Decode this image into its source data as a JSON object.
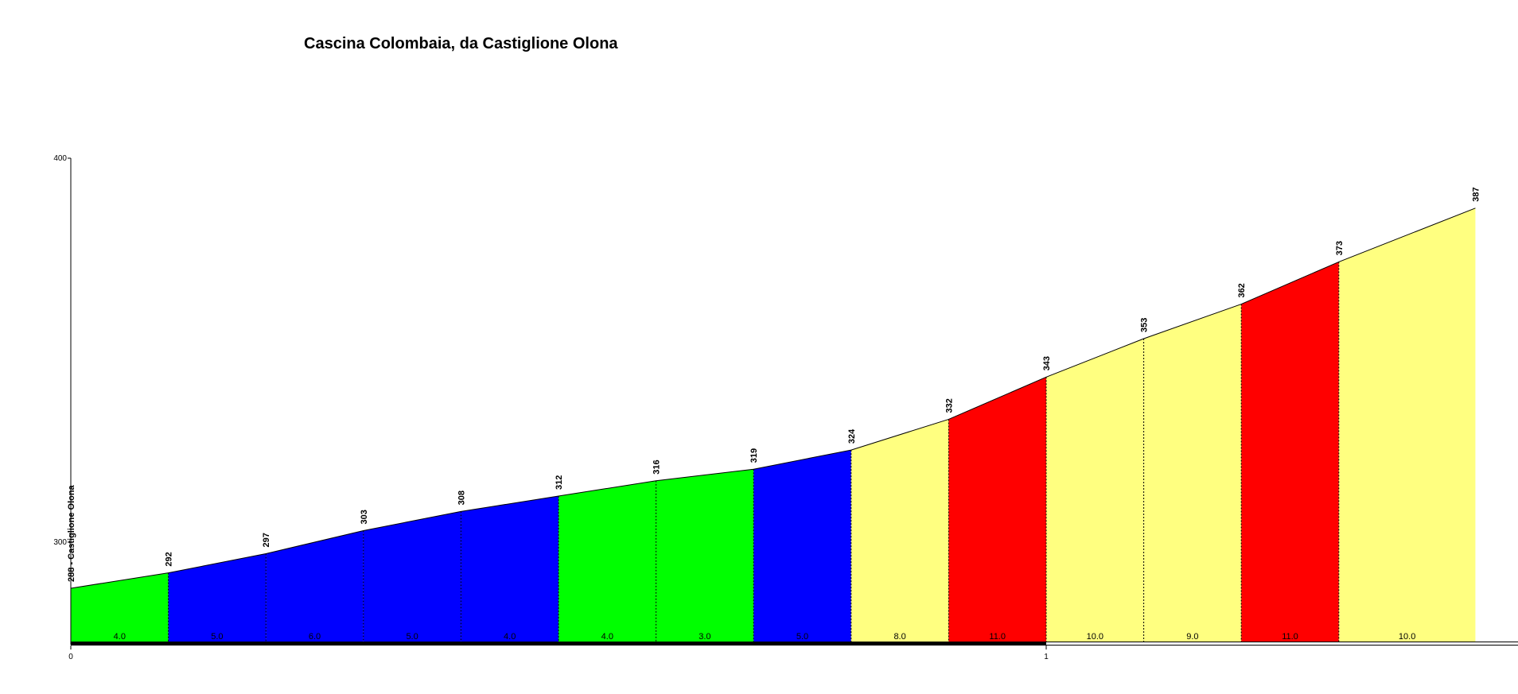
{
  "chart_data": {
    "type": "area",
    "title": "Cascina Colombaia, da Castiglione Olona",
    "xlabel": "",
    "ylabel": "",
    "x_unit_ticks": [
      {
        "value": 0,
        "label": "0"
      },
      {
        "value": 1,
        "label": "1"
      }
    ],
    "y_ticks": [
      {
        "value": 300,
        "label": "300"
      },
      {
        "value": 400,
        "label": "400"
      }
    ],
    "ylim": [
      274,
      400
    ],
    "xlim": [
      0,
      1.44
    ],
    "grid": false,
    "points": [
      {
        "x": 0.0,
        "elevation": 288,
        "label": "288 - Castiglione Olona"
      },
      {
        "x": 0.1,
        "elevation": 292,
        "label": "292"
      },
      {
        "x": 0.2,
        "elevation": 297,
        "label": "297"
      },
      {
        "x": 0.3,
        "elevation": 303,
        "label": "303"
      },
      {
        "x": 0.4,
        "elevation": 308,
        "label": "308"
      },
      {
        "x": 0.5,
        "elevation": 312,
        "label": "312"
      },
      {
        "x": 0.6,
        "elevation": 316,
        "label": "316"
      },
      {
        "x": 0.7,
        "elevation": 319,
        "label": "319"
      },
      {
        "x": 0.8,
        "elevation": 324,
        "label": "324"
      },
      {
        "x": 0.9,
        "elevation": 332,
        "label": "332"
      },
      {
        "x": 1.0,
        "elevation": 343,
        "label": "343"
      },
      {
        "x": 1.1,
        "elevation": 353,
        "label": "353"
      },
      {
        "x": 1.2,
        "elevation": 362,
        "label": "362"
      },
      {
        "x": 1.3,
        "elevation": 373,
        "label": "373"
      },
      {
        "x": 1.44,
        "elevation": 387,
        "label": "387"
      }
    ],
    "segments": [
      {
        "gradient": "4.0",
        "color": "#00ff00"
      },
      {
        "gradient": "5.0",
        "color": "#0000ff"
      },
      {
        "gradient": "6.0",
        "color": "#0000ff"
      },
      {
        "gradient": "5.0",
        "color": "#0000ff"
      },
      {
        "gradient": "4.0",
        "color": "#0000ff"
      },
      {
        "gradient": "4.0",
        "color": "#00ff00"
      },
      {
        "gradient": "3.0",
        "color": "#00ff00"
      },
      {
        "gradient": "5.0",
        "color": "#0000ff"
      },
      {
        "gradient": "8.0",
        "color": "#ffff80"
      },
      {
        "gradient": "11.0",
        "color": "#ff0000"
      },
      {
        "gradient": "10.0",
        "color": "#ffff80"
      },
      {
        "gradient": "9.0",
        "color": "#ffff80"
      },
      {
        "gradient": "11.0",
        "color": "#ff0000"
      },
      {
        "gradient": "10.0",
        "color": "#ffff80"
      }
    ],
    "colors": {
      "easy": "#00ff00",
      "moderate": "#0000ff",
      "hard": "#ffff80",
      "steep": "#ff0000",
      "axis": "#000000"
    }
  }
}
